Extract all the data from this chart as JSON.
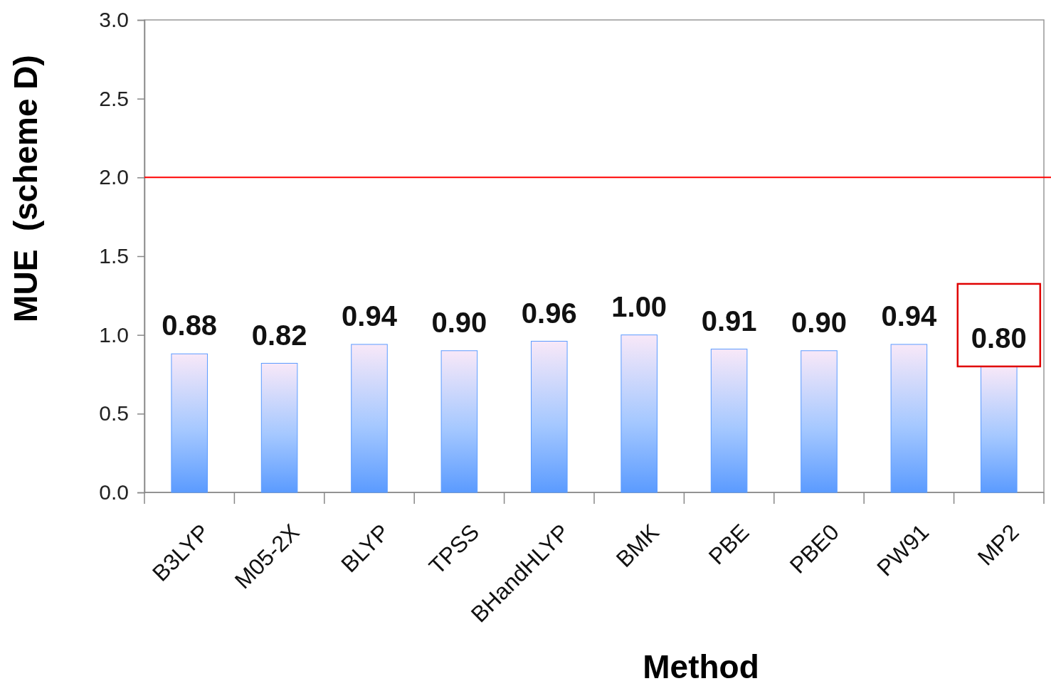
{
  "chart_data": {
    "type": "bar",
    "xlabel": "Method",
    "ylabel": "MUE  (scheme D)",
    "categories": [
      "B3LYP",
      "M05-2X",
      "BLYP",
      "TPSS",
      "BHandHLYP",
      "BMK",
      "PBE",
      "PBE0",
      "PW91",
      "MP2"
    ],
    "values": [
      0.88,
      0.82,
      0.94,
      0.9,
      0.96,
      1.0,
      0.91,
      0.9,
      0.94,
      0.8
    ],
    "value_labels": [
      "0.88",
      "0.82",
      "0.94",
      "0.90",
      "0.96",
      "1.00",
      "0.91",
      "0.90",
      "0.94",
      "0.80"
    ],
    "color": "#5b9bff",
    "ylim": [
      0,
      3
    ],
    "yticks": [
      {
        "value": 0,
        "label": "0.0"
      },
      {
        "value": 0.5,
        "label": "0.5"
      },
      {
        "value": 1,
        "label": "1.0"
      },
      {
        "value": 1.5,
        "label": "1.5"
      },
      {
        "value": 2,
        "label": "2.0"
      },
      {
        "value": 2.5,
        "label": "2.5"
      },
      {
        "value": 3,
        "label": "3.0"
      }
    ],
    "ref_lines": [
      {
        "axis": "y",
        "value": 2,
        "color": "#ff0000"
      }
    ],
    "grid": false
  }
}
